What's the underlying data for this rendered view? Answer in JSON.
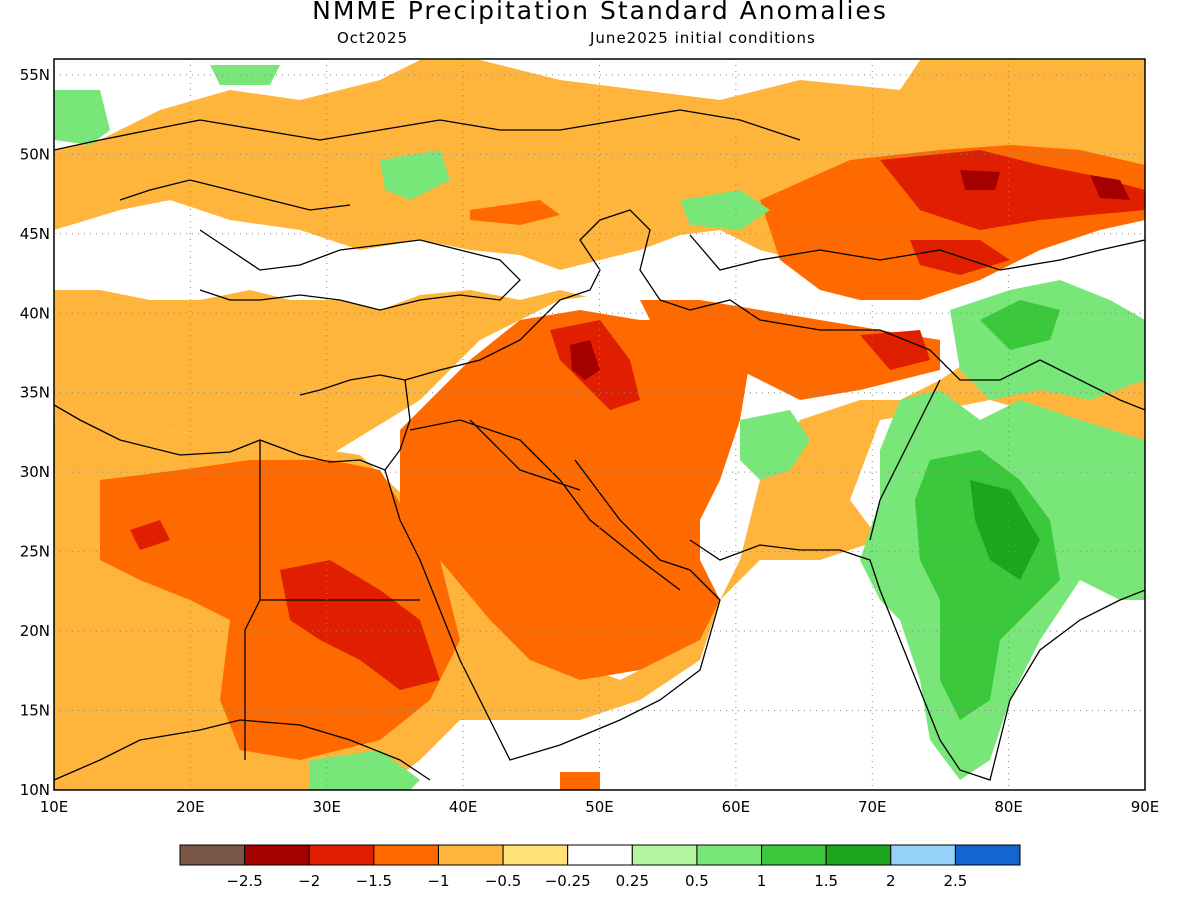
{
  "title": "NMME Precipitation Standard Anomalies",
  "subtitle_left": "Oct2025",
  "subtitle_right": "June2025 initial conditions",
  "map": {
    "lon_range": [
      10,
      90
    ],
    "lat_range": [
      10,
      56
    ],
    "lon_labels": [
      "10E",
      "20E",
      "30E",
      "40E",
      "50E",
      "60E",
      "70E",
      "80E",
      "90E"
    ],
    "lat_labels": [
      "10N",
      "15N",
      "20N",
      "25N",
      "30N",
      "35N",
      "40N",
      "45N",
      "50N",
      "55N"
    ]
  },
  "colorbar": {
    "colors": [
      "#7a5646",
      "#a50000",
      "#e01e00",
      "#ff6a00",
      "#ffb43c",
      "#ffe178",
      "#ffffff",
      "#b4f5a0",
      "#78e678",
      "#3cc83c",
      "#1ea51e",
      "#96d2fa",
      "#1464d2"
    ],
    "labels": [
      "−2.5",
      "−2",
      "−1.5",
      "−1",
      "−0.5",
      "−0.25",
      "0.25",
      "0.5",
      "1",
      "1.5",
      "2",
      "2.5"
    ]
  }
}
